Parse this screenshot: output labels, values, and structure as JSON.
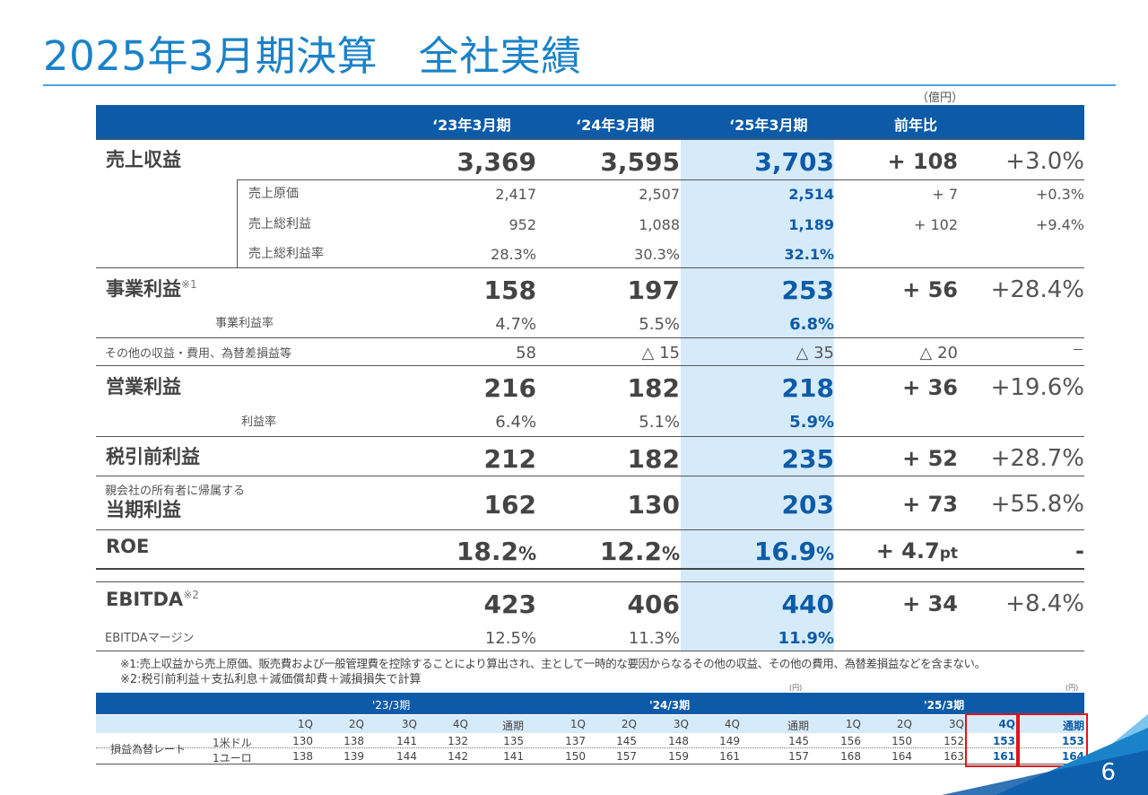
{
  "title": "2025年3月期決算　全社実績",
  "unit": "（億円）",
  "columns": [
    "‘23年3月期",
    "‘24年3月期",
    "‘25年3月期",
    "前年比"
  ],
  "rows": [
    {
      "key": "revenue",
      "label": "売上収益",
      "v": [
        "3,369",
        "3,595",
        "3,703"
      ],
      "diff": "+ 108",
      "pct": "+3.0%"
    },
    {
      "key": "cogs",
      "label": "売上原価",
      "v": [
        "2,417",
        "2,507",
        "2,514"
      ],
      "diff": "+ 7",
      "pct": "+0.3%"
    },
    {
      "key": "gross",
      "label": "売上総利益",
      "v": [
        "952",
        "1,088",
        "1,189"
      ],
      "diff": "+ 102",
      "pct": "+9.4%"
    },
    {
      "key": "gross_rate",
      "label": "売上総利益率",
      "v": [
        "28.3%",
        "30.3%",
        "32.1%"
      ]
    },
    {
      "key": "biz",
      "label": "事業利益",
      "note": "※1",
      "v": [
        "158",
        "197",
        "253"
      ],
      "diff": "+ 56",
      "pct": "+28.4%"
    },
    {
      "key": "biz_rate",
      "label": "事業利益率",
      "v": [
        "4.7%",
        "5.5%",
        "6.8%"
      ]
    },
    {
      "key": "other",
      "label": "その他の収益・費用、為替差損益等",
      "v": [
        "58",
        "△ 15",
        "△ 35"
      ],
      "diff": "△ 20",
      "pct": "－"
    },
    {
      "key": "op",
      "label": "営業利益",
      "v": [
        "216",
        "182",
        "218"
      ],
      "diff": "+ 36",
      "pct": "+19.6%"
    },
    {
      "key": "op_rate",
      "label": "利益率",
      "v": [
        "6.4%",
        "5.1%",
        "5.9%"
      ]
    },
    {
      "key": "pretax",
      "label": "税引前利益",
      "v": [
        "212",
        "182",
        "235"
      ],
      "diff": "+ 52",
      "pct": "+28.7%"
    },
    {
      "key": "net",
      "label_small": "親会社の所有者に帰属する",
      "label": "当期利益",
      "v": [
        "162",
        "130",
        "203"
      ],
      "diff": "+ 73",
      "pct": "+55.8%"
    },
    {
      "key": "roe",
      "label": "ROE",
      "v": [
        "18.2",
        "12.2",
        "16.9"
      ],
      "unit": "%",
      "diff": "+ 4.7",
      "diff_unit": "pt",
      "pct": "-"
    },
    {
      "key": "ebitda",
      "label": "EBITDA",
      "note": "※2",
      "v": [
        "423",
        "406",
        "440"
      ],
      "diff": "+ 34",
      "pct": "+8.4%"
    },
    {
      "key": "ebitda_margin",
      "label": "EBITDAマージン",
      "v": [
        "12.5%",
        "11.3%",
        "11.9%"
      ]
    }
  ],
  "notes": [
    "※1:売上収益から売上原価、販売費および一般管理費を控除することにより算出され、主として一時的な要因からなるその他の収益、その他の費用、為替差損益などを含まない。",
    "※2:税引前利益＋支払利息＋減価償却費＋減損損失で計算"
  ],
  "fx": {
    "yen_note": "(円)",
    "periods": [
      "'23/3期",
      "'24/3期",
      "'25/3期"
    ],
    "quarters": [
      "1Q",
      "2Q",
      "3Q",
      "4Q",
      "通期"
    ],
    "row_group_label": "損益為替レート",
    "rows": [
      {
        "label": "1米ドル",
        "values": [
          "130",
          "138",
          "141",
          "132",
          "135",
          "137",
          "145",
          "148",
          "149",
          "145",
          "156",
          "150",
          "152",
          "153",
          "153"
        ]
      },
      {
        "label": "1ユーロ",
        "values": [
          "138",
          "139",
          "144",
          "142",
          "141",
          "150",
          "157",
          "159",
          "161",
          "157",
          "168",
          "164",
          "163",
          "161",
          "164"
        ]
      }
    ]
  },
  "page_number": "6",
  "colors": {
    "brand": "#1a82c8",
    "header": "#0d5ba8",
    "highlight": "#d6ebfa",
    "red": "#e0141e"
  }
}
